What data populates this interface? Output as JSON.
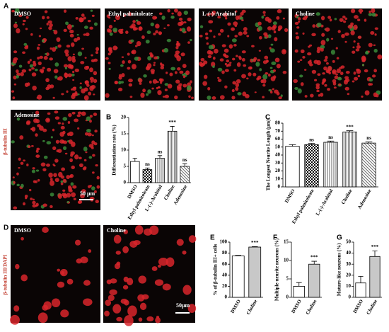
{
  "figure": {
    "panel_labels": [
      "A",
      "B",
      "C",
      "D",
      "E",
      "F",
      "G"
    ],
    "images_A": [
      "DMSO",
      "Ethyl palmitoleate",
      "L-(-)-Arabitol",
      "Choline",
      "Adenosine"
    ],
    "stain_A": "β-tubulin III",
    "scale_A": "50 μm",
    "images_D": [
      "DMSO",
      "Choline"
    ],
    "stain_D": "β-tubulin III/DAPI",
    "scale_D": "50μm"
  },
  "chart_data": [
    {
      "type": "bar",
      "ylabel": "Differentiation rate (%)",
      "categories": [
        "DMSO",
        "Ethyl palmitoleate",
        "L-(-)-Arabitol",
        "Choline",
        "Adenosine"
      ],
      "values": [
        6.5,
        4,
        7.5,
        15.8,
        5
      ],
      "errors": [
        1,
        0.5,
        0.8,
        1.5,
        0.8
      ],
      "annotations": [
        null,
        "ns",
        "ns",
        "***",
        "ns"
      ],
      "fills": [
        "#ffffff",
        "checker",
        "vlines",
        "stripes",
        "diagonal"
      ],
      "ylim": [
        0,
        20
      ],
      "yticks": [
        0,
        5,
        10,
        15,
        20
      ]
    },
    {
      "type": "bar",
      "ylabel": "The Longest Neurite Length (μm)",
      "categories": [
        "DMSO",
        "Ethyl palmitoleate",
        "L-(-)-Arabitol",
        "Choline",
        "Adenosine"
      ],
      "values": [
        51,
        53,
        56,
        69,
        55
      ],
      "errors": [
        2,
        1.5,
        1.5,
        1.5,
        1.5
      ],
      "annotations": [
        null,
        "ns",
        "ns",
        "***",
        "ns"
      ],
      "fills": [
        "#ffffff",
        "checker",
        "vlines",
        "stripes",
        "diagonal"
      ],
      "ylim": [
        0,
        80
      ],
      "yticks": [
        0,
        10,
        20,
        30,
        40,
        50,
        60,
        70,
        80
      ]
    },
    {
      "type": "bar",
      "ylabel": "% of β-tubulin III+ cells",
      "categories": [
        "DMSO",
        "Choline"
      ],
      "values": [
        75,
        91
      ],
      "errors": [
        1,
        1
      ],
      "annotations": [
        null,
        "***"
      ],
      "fills": [
        "#ffffff",
        "#c8c8c8"
      ],
      "ylim": [
        0,
        100
      ],
      "yticks": [
        0,
        20,
        40,
        60,
        80,
        100
      ]
    },
    {
      "type": "bar",
      "ylabel": "Multiple-neurite neurons (%)",
      "categories": [
        "DMSO",
        "Choline"
      ],
      "values": [
        3,
        9
      ],
      "errors": [
        1,
        0.8
      ],
      "annotations": [
        null,
        "***"
      ],
      "fills": [
        "#ffffff",
        "#c8c8c8"
      ],
      "ylim": [
        0,
        15
      ],
      "yticks": [
        0,
        5,
        10,
        15
      ]
    },
    {
      "type": "bar",
      "ylabel": "Mature-like neurons (%)",
      "categories": [
        "DMSO",
        "Choline"
      ],
      "values": [
        13,
        37
      ],
      "errors": [
        6,
        5
      ],
      "annotations": [
        null,
        "***"
      ],
      "fills": [
        "#ffffff",
        "#c8c8c8"
      ],
      "ylim": [
        0,
        50
      ],
      "yticks": [
        0,
        10,
        20,
        30,
        40,
        50
      ]
    }
  ]
}
